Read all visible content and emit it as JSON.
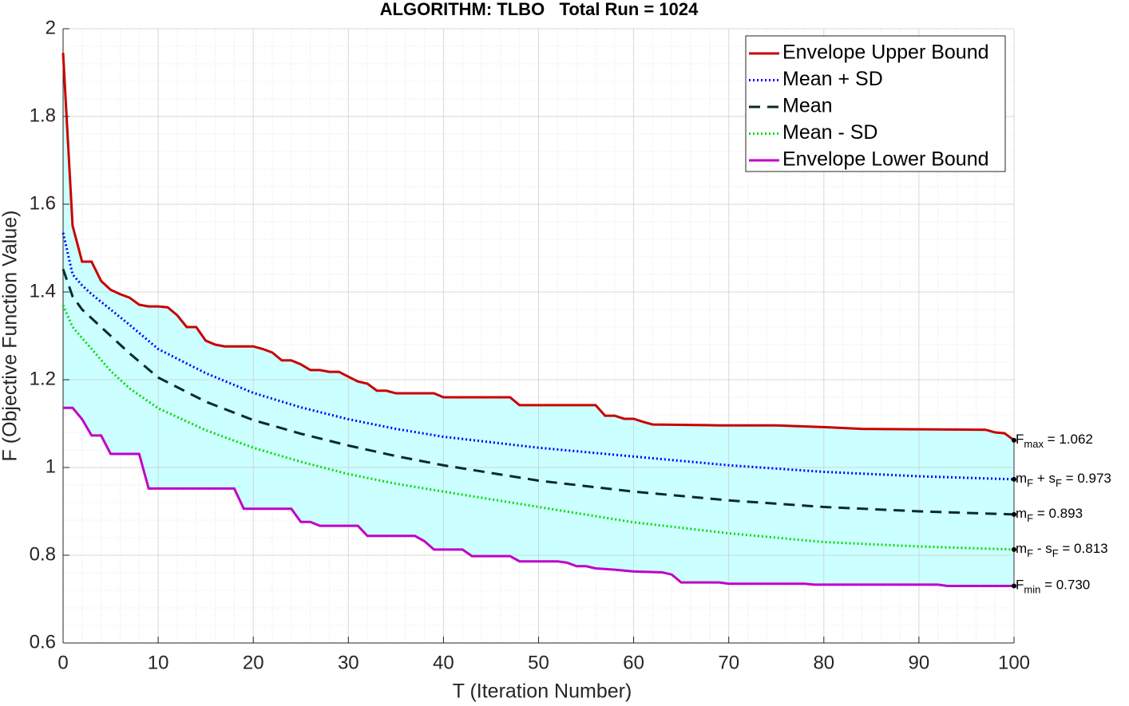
{
  "chart_data": {
    "type": "line",
    "title": "ALGORITHM: TLBO   Total Run = 1024",
    "xlabel": "T (Iteration Number)",
    "ylabel": "F (Objective Function Value)",
    "xlim": [
      0,
      100
    ],
    "ylim": [
      0.6,
      2
    ],
    "xticks": [
      0,
      10,
      20,
      30,
      40,
      50,
      60,
      70,
      80,
      90,
      100
    ],
    "yticks": [
      0.6,
      0.8,
      1,
      1.2,
      1.4,
      1.6,
      1.8,
      2
    ],
    "grid": true,
    "minor_grid": true,
    "fill_between_envelopes": "#ccffff",
    "legend": "upper right",
    "series": [
      {
        "name": "Envelope Upper Bound",
        "color": "#c80000",
        "style": "solid",
        "x": [
          0,
          1,
          2,
          3,
          4,
          5,
          6,
          7,
          8,
          9,
          10,
          11,
          12,
          13,
          14,
          15,
          16,
          17,
          20,
          21,
          22,
          23,
          24,
          25,
          26,
          27,
          28,
          29,
          30,
          31,
          32,
          33,
          34,
          35,
          39,
          40,
          47,
          48,
          56,
          57,
          58,
          59,
          60,
          61,
          62,
          69,
          75,
          80,
          84,
          90,
          97,
          98,
          99,
          100
        ],
        "values": [
          1.945,
          1.551,
          1.469,
          1.469,
          1.425,
          1.405,
          1.395,
          1.387,
          1.371,
          1.367,
          1.367,
          1.365,
          1.347,
          1.32,
          1.32,
          1.289,
          1.28,
          1.276,
          1.276,
          1.27,
          1.262,
          1.244,
          1.244,
          1.235,
          1.222,
          1.222,
          1.218,
          1.218,
          1.207,
          1.196,
          1.191,
          1.175,
          1.175,
          1.169,
          1.169,
          1.16,
          1.16,
          1.142,
          1.142,
          1.118,
          1.118,
          1.111,
          1.111,
          1.104,
          1.098,
          1.096,
          1.096,
          1.092,
          1.088,
          1.087,
          1.086,
          1.08,
          1.078,
          1.062
        ],
        "end_label": [
          {
            "text": "F"
          },
          {
            "text": "max",
            "sub": true
          },
          {
            "text": " = 1.062"
          }
        ]
      },
      {
        "name": "Mean + SD",
        "color": "#0000ff",
        "style": "dotted",
        "x": [
          0,
          1,
          2,
          3,
          5,
          7,
          10,
          15,
          20,
          25,
          30,
          35,
          40,
          50,
          60,
          70,
          80,
          90,
          100
        ],
        "values": [
          1.535,
          1.44,
          1.415,
          1.395,
          1.36,
          1.325,
          1.27,
          1.215,
          1.17,
          1.137,
          1.11,
          1.088,
          1.07,
          1.045,
          1.025,
          1.005,
          0.99,
          0.98,
          0.973
        ],
        "end_label": [
          {
            "text": "m"
          },
          {
            "text": "F",
            "sub": true
          },
          {
            "text": " + s"
          },
          {
            "text": "F",
            "sub": true
          },
          {
            "text": " = 0.973"
          }
        ]
      },
      {
        "name": "Mean",
        "color": "#0a2a2a",
        "style": "dashed",
        "x": [
          0,
          1,
          2,
          3,
          5,
          7,
          10,
          15,
          20,
          25,
          30,
          35,
          40,
          50,
          60,
          70,
          80,
          90,
          100
        ],
        "values": [
          1.452,
          1.39,
          1.36,
          1.34,
          1.3,
          1.26,
          1.205,
          1.15,
          1.108,
          1.077,
          1.05,
          1.026,
          1.005,
          0.97,
          0.945,
          0.925,
          0.91,
          0.9,
          0.893
        ],
        "end_label": [
          {
            "text": "m"
          },
          {
            "text": "F",
            "sub": true
          },
          {
            "text": " = 0.893"
          }
        ]
      },
      {
        "name": "Mean - SD",
        "color": "#00dd00",
        "style": "dotted",
        "x": [
          0,
          1,
          2,
          3,
          5,
          7,
          10,
          15,
          20,
          25,
          30,
          35,
          40,
          50,
          60,
          70,
          80,
          90,
          100
        ],
        "values": [
          1.37,
          1.32,
          1.295,
          1.27,
          1.22,
          1.18,
          1.135,
          1.085,
          1.045,
          1.013,
          0.985,
          0.963,
          0.945,
          0.91,
          0.875,
          0.85,
          0.83,
          0.82,
          0.813
        ],
        "end_label": [
          {
            "text": "m"
          },
          {
            "text": "F",
            "sub": true
          },
          {
            "text": " - s"
          },
          {
            "text": "F",
            "sub": true
          },
          {
            "text": " = 0.813"
          }
        ]
      },
      {
        "name": "Envelope Lower Bound",
        "color": "#c000c8",
        "style": "solid",
        "x": [
          0,
          1,
          2,
          3,
          4,
          5,
          8,
          9,
          18,
          19,
          24,
          25,
          26,
          27,
          31,
          32,
          37,
          38,
          39,
          42,
          43,
          47,
          48,
          52,
          53,
          54,
          55,
          56,
          58,
          60,
          63,
          64,
          65,
          69,
          70,
          78,
          79,
          92,
          93,
          100
        ],
        "values": [
          1.136,
          1.136,
          1.11,
          1.073,
          1.073,
          1.031,
          1.031,
          0.952,
          0.952,
          0.906,
          0.906,
          0.876,
          0.876,
          0.867,
          0.867,
          0.844,
          0.844,
          0.832,
          0.813,
          0.813,
          0.798,
          0.798,
          0.786,
          0.786,
          0.783,
          0.775,
          0.775,
          0.77,
          0.767,
          0.763,
          0.761,
          0.756,
          0.738,
          0.738,
          0.735,
          0.735,
          0.733,
          0.733,
          0.73,
          0.73
        ],
        "end_label": [
          {
            "text": "F"
          },
          {
            "text": "min",
            "sub": true
          },
          {
            "text": " = 0.730"
          }
        ]
      }
    ]
  }
}
